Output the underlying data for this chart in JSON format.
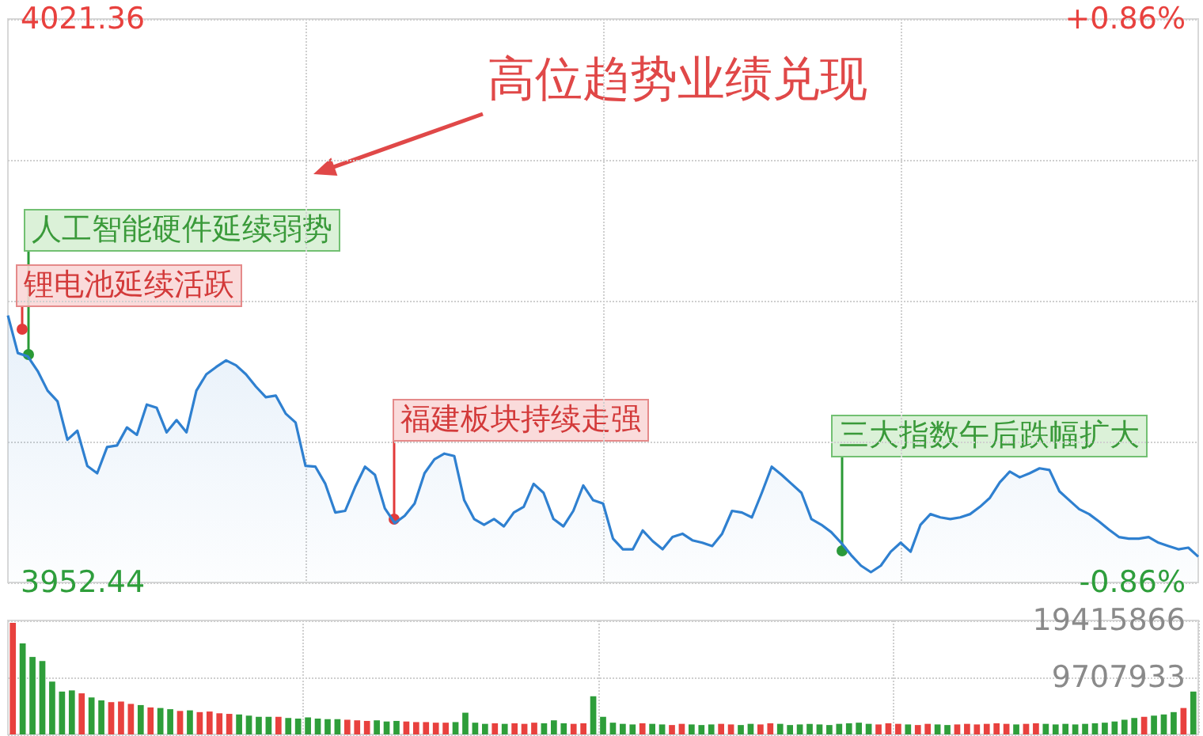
{
  "chart_data": [
    {
      "type": "area",
      "color": "#2f80d0",
      "grid": true,
      "categories": [
        null,
        null,
        null,
        null,
        null,
        null,
        null,
        null,
        null,
        null,
        null,
        null,
        null,
        null,
        null,
        null,
        null,
        null,
        null,
        null,
        null,
        null,
        null,
        null,
        null,
        null,
        null,
        null,
        null,
        null,
        null,
        null,
        null,
        null,
        null,
        null,
        null,
        null,
        null,
        null,
        null,
        null,
        null,
        null,
        null,
        null,
        null,
        null,
        null,
        null,
        null,
        null,
        null,
        null,
        null,
        null,
        null,
        null,
        null,
        null,
        null,
        null,
        null,
        null,
        null,
        null,
        null,
        null,
        null,
        null,
        null,
        null,
        null,
        null,
        null,
        null,
        null,
        null,
        null,
        null,
        null,
        null,
        null,
        null,
        null,
        null,
        null,
        null,
        null,
        null,
        null,
        null,
        null,
        null,
        null,
        null,
        null,
        null,
        null,
        null,
        null,
        null,
        null,
        null,
        null,
        null,
        null,
        null,
        null,
        null,
        null,
        null,
        null,
        null,
        null,
        null,
        null,
        null,
        null,
        null,
        null
      ],
      "values": [
        3985.1,
        3980.5,
        3980.1,
        3978.3,
        3975.9,
        3974.6,
        3969.9,
        3971.0,
        3966.7,
        3965.8,
        3969.0,
        3969.2,
        3971.4,
        3970.5,
        3974.2,
        3973.8,
        3970.8,
        3972.3,
        3970.8,
        3975.9,
        3977.9,
        3978.8,
        3979.6,
        3979.0,
        3977.9,
        3976.4,
        3975.1,
        3975.3,
        3973.1,
        3972.0,
        3966.7,
        3966.6,
        3964.5,
        3961.0,
        3961.2,
        3964.1,
        3966.6,
        3965.6,
        3961.5,
        3959.7,
        3960.6,
        3962.1,
        3965.8,
        3967.5,
        3968.2,
        3967.9,
        3962.5,
        3960.2,
        3959.5,
        3960.2,
        3959.3,
        3961.0,
        3961.7,
        3964.5,
        3963.4,
        3960.2,
        3959.3,
        3961.2,
        3964.3,
        3962.5,
        3962.1,
        3957.8,
        3956.5,
        3956.5,
        3958.8,
        3957.5,
        3956.5,
        3958.0,
        3958.4,
        3957.6,
        3957.3,
        3956.9,
        3958.4,
        3961.2,
        3961.0,
        3960.4,
        3963.4,
        3966.6,
        3965.6,
        3964.5,
        3963.4,
        3960.2,
        3959.5,
        3958.6,
        3957.3,
        3955.8,
        3954.5,
        3953.7,
        3954.5,
        3956.2,
        3957.3,
        3956.2,
        3959.5,
        3960.8,
        3960.4,
        3960.2,
        3960.4,
        3960.8,
        3961.7,
        3962.8,
        3964.7,
        3966.0,
        3965.3,
        3965.8,
        3966.4,
        3966.2,
        3963.6,
        3962.5,
        3961.4,
        3960.8,
        3959.9,
        3958.9,
        3958.0,
        3957.8,
        3957.8,
        3958.0,
        3957.3,
        3956.9,
        3956.5,
        3956.7,
        3955.6
      ],
      "ylim": [
        3952.44,
        4021.36
      ],
      "yticks": [
        3952.44,
        {
          "value": 3969.67,
          "label": null
        },
        {
          "value": 3986.9,
          "label": null
        },
        {
          "value": 4004.13,
          "label": null
        },
        4021.36
      ],
      "y2lim": [
        -0.86,
        0.86
      ],
      "y2ticks": [
        {
          "value": -0.86,
          "label": "-0.86%"
        },
        {
          "value": 0.86,
          "label": "+0.86%"
        }
      ],
      "annotations": [
        "高位趋势业绩兑现",
        "人工智能硬件延续弱势",
        "锂电池延续活跃",
        "福建板块持续走强",
        "三大指数午后跌幅扩大"
      ]
    },
    {
      "type": "bar",
      "grid": true,
      "categories": [
        null,
        null,
        null,
        null,
        null,
        null,
        null,
        null,
        null,
        null,
        null,
        null,
        null,
        null,
        null,
        null,
        null,
        null,
        null,
        null,
        null,
        null,
        null,
        null,
        null,
        null,
        null,
        null,
        null,
        null,
        null,
        null,
        null,
        null,
        null,
        null,
        null,
        null,
        null,
        null,
        null,
        null,
        null,
        null,
        null,
        null,
        null,
        null,
        null,
        null,
        null,
        null,
        null,
        null,
        null,
        null,
        null,
        null,
        null,
        null,
        null,
        null,
        null,
        null,
        null,
        null,
        null,
        null,
        null,
        null,
        null,
        null,
        null,
        null,
        null,
        null,
        null,
        null,
        null,
        null,
        null,
        null,
        null,
        null,
        null,
        null,
        null,
        null,
        null,
        null,
        null,
        null,
        null,
        null,
        null,
        null,
        null,
        null,
        null,
        null,
        null,
        null,
        null,
        null,
        null,
        null,
        null,
        null,
        null,
        null,
        null,
        null,
        null,
        null,
        null,
        null,
        null,
        null,
        null,
        null,
        null
      ],
      "values": [
        19000000,
        15500000,
        13200000,
        12500000,
        9000000,
        7300000,
        7500000,
        7000000,
        6300000,
        5800000,
        5500000,
        5600000,
        5200000,
        5000000,
        4600000,
        4500000,
        4300000,
        4000000,
        4100000,
        3800000,
        3900000,
        3600000,
        3500000,
        3400000,
        3200000,
        3000000,
        3000000,
        3000000,
        2800000,
        2700000,
        2900000,
        2700000,
        2600000,
        2600000,
        2500000,
        2400000,
        2300000,
        2400000,
        2200000,
        2300000,
        2200000,
        2100000,
        2100000,
        2000000,
        2000000,
        2100000,
        3700000,
        2000000,
        1800000,
        1900000,
        1800000,
        1900000,
        1800000,
        2000000,
        1900000,
        2400000,
        1900000,
        1800000,
        1900000,
        6500000,
        3000000,
        2000000,
        1800000,
        1700000,
        1900000,
        1800000,
        1700000,
        1600000,
        1800000,
        1700000,
        1600000,
        1700000,
        1800000,
        1700000,
        1600000,
        1800000,
        1700000,
        1900000,
        1800000,
        1600000,
        1700000,
        1800000,
        1700000,
        1600000,
        1800000,
        1900000,
        2000000,
        1800000,
        1700000,
        1900000,
        1800000,
        1700000,
        1600000,
        1800000,
        1700000,
        1600000,
        1700000,
        1800000,
        1700000,
        1800000,
        1900000,
        1800000,
        1700000,
        1800000,
        1900000,
        1800000,
        1700000,
        1800000,
        1700000,
        1800000,
        1900000,
        2000000,
        2200000,
        2500000,
        2800000,
        3000000,
        3200000,
        3400000,
        3800000,
        4500000,
        7300000
      ],
      "colors": [
        "#e8413e",
        "#2e9e3a",
        "#2e9e3a",
        "#2e9e3a",
        "#2e9e3a",
        "#2e9e3a",
        "#2e9e3a",
        "#e8413e",
        "#2e9e3a",
        "#2e9e3a",
        "#e8413e",
        "#e8413e",
        "#e8413e",
        "#2e9e3a",
        "#e8413e",
        "#2e9e3a",
        "#2e9e3a",
        "#e8413e",
        "#2e9e3a",
        "#e8413e",
        "#e8413e",
        "#e8413e",
        "#e8413e",
        "#2e9e3a",
        "#2e9e3a",
        "#2e9e3a",
        "#2e9e3a",
        "#e8413e",
        "#2e9e3a",
        "#2e9e3a",
        "#2e9e3a",
        "#2e9e3a",
        "#2e9e3a",
        "#2e9e3a",
        "#e8413e",
        "#e8413e",
        "#e8413e",
        "#2e9e3a",
        "#2e9e3a",
        "#2e9e3a",
        "#e8413e",
        "#e8413e",
        "#e8413e",
        "#e8413e",
        "#e8413e",
        "#2e9e3a",
        "#2e9e3a",
        "#2e9e3a",
        "#2e9e3a",
        "#e8413e",
        "#2e9e3a",
        "#e8413e",
        "#e8413e",
        "#e8413e",
        "#2e9e3a",
        "#2e9e3a",
        "#2e9e3a",
        "#e8413e",
        "#e8413e",
        "#2e9e3a",
        "#2e9e3a",
        "#2e9e3a",
        "#2e9e3a",
        "#2e9e3a",
        "#e8413e",
        "#2e9e3a",
        "#2e9e3a",
        "#e8413e",
        "#e8413e",
        "#2e9e3a",
        "#2e9e3a",
        "#2e9e3a",
        "#e8413e",
        "#e8413e",
        "#2e9e3a",
        "#2e9e3a",
        "#e8413e",
        "#e8413e",
        "#2e9e3a",
        "#2e9e3a",
        "#2e9e3a",
        "#2e9e3a",
        "#2e9e3a",
        "#2e9e3a",
        "#2e9e3a",
        "#2e9e3a",
        "#2e9e3a",
        "#2e9e3a",
        "#e8413e",
        "#e8413e",
        "#e8413e",
        "#2e9e3a",
        "#e8413e",
        "#e8413e",
        "#2e9e3a",
        "#2e9e3a",
        "#e8413e",
        "#e8413e",
        "#e8413e",
        "#e8413e",
        "#e8413e",
        "#e8413e",
        "#2e9e3a",
        "#e8413e",
        "#e8413e",
        "#2e9e3a",
        "#2e9e3a",
        "#2e9e3a",
        "#2e9e3a",
        "#2e9e3a",
        "#2e9e3a",
        "#2e9e3a",
        "#2e9e3a",
        "#2e9e3a",
        "#2e9e3a",
        "#e8413e",
        "#2e9e3a",
        "#2e9e3a",
        "#2e9e3a",
        "#e8413e",
        "#2e9e3a"
      ],
      "ylim": [
        0,
        19415866
      ],
      "yticks": [
        9707933,
        19415866
      ]
    }
  ]
}
